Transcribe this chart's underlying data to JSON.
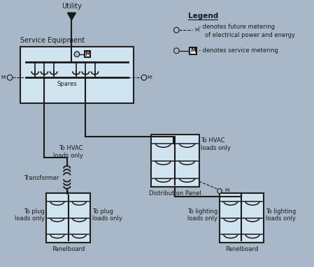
{
  "bg_color": "#a8b8c8",
  "panel_fill": "#d0e4f0",
  "panel_edge": "#222222",
  "line_color": "#1a1a1a",
  "title": "Service Equipment",
  "utility_label": "Utility",
  "legend_title": "Legend",
  "legend_line1": "denotes future metering",
  "legend_line2": "of electrical power and energy",
  "legend_line3": "denotes service metering",
  "labels": {
    "spares": "Spares",
    "transformer": "Transformer",
    "dist_panel": "Distribution Panel",
    "panelboard_left": "Panelboard",
    "panelboard_right": "Panelboard",
    "to_hvac_left": "To HVAC\nloads only",
    "to_hvac_right": "To HVAC\nloads only",
    "to_plug_left": "To plug\nloads only",
    "to_plug_right": "To plug\nloads only",
    "to_lighting_left": "To lighting\nloads only",
    "to_lighting_right": "To lighting\nloads only"
  },
  "font_size_small": 6.0,
  "font_size_med": 7.0,
  "font_size_large": 8.5
}
